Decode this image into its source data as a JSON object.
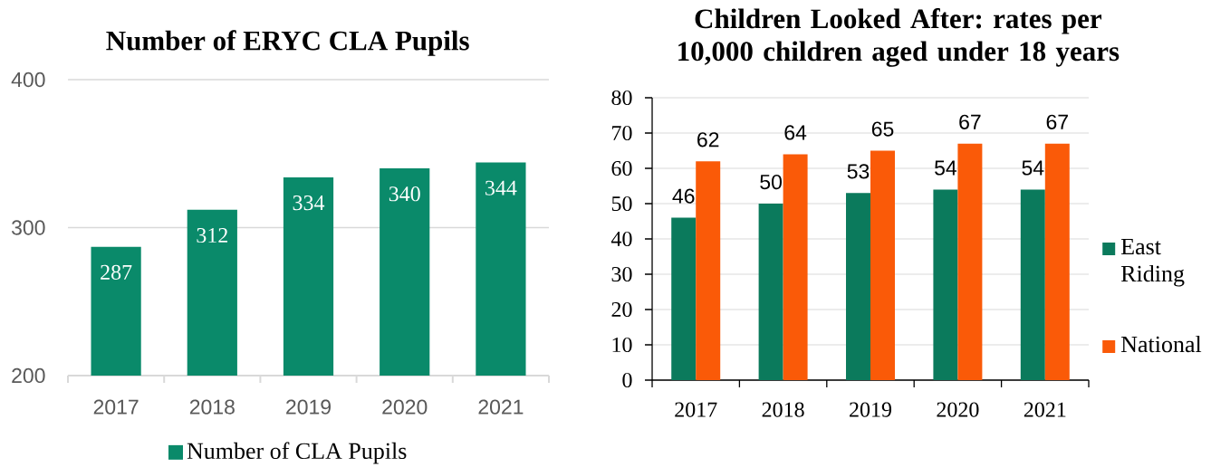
{
  "chart_data": [
    {
      "type": "bar",
      "title": "Number of ERYC CLA Pupils",
      "categories": [
        "2017",
        "2018",
        "2019",
        "2020",
        "2021"
      ],
      "series": [
        {
          "name": "Number of CLA Pupils",
          "color": "#0a8a6a",
          "values": [
            287,
            312,
            334,
            340,
            344
          ]
        }
      ],
      "ylim": [
        200,
        400
      ],
      "yticks": [
        200,
        300,
        400
      ],
      "grid": "y",
      "legend": "bottom",
      "data_labels": true
    },
    {
      "type": "bar",
      "title": "Children Looked After: rates per 10,000 children aged under 18 years",
      "categories": [
        "2017",
        "2018",
        "2019",
        "2020",
        "2021"
      ],
      "series": [
        {
          "name": "East Riding",
          "color": "#0b7a5c",
          "values": [
            46,
            50,
            53,
            54,
            54
          ]
        },
        {
          "name": "National",
          "color": "#fa5a08",
          "values": [
            62,
            64,
            65,
            67,
            67
          ]
        }
      ],
      "ylim": [
        0,
        80
      ],
      "yticks": [
        0,
        10,
        20,
        30,
        40,
        50,
        60,
        70,
        80
      ],
      "grid": "y",
      "legend": "right",
      "data_labels": true
    }
  ]
}
